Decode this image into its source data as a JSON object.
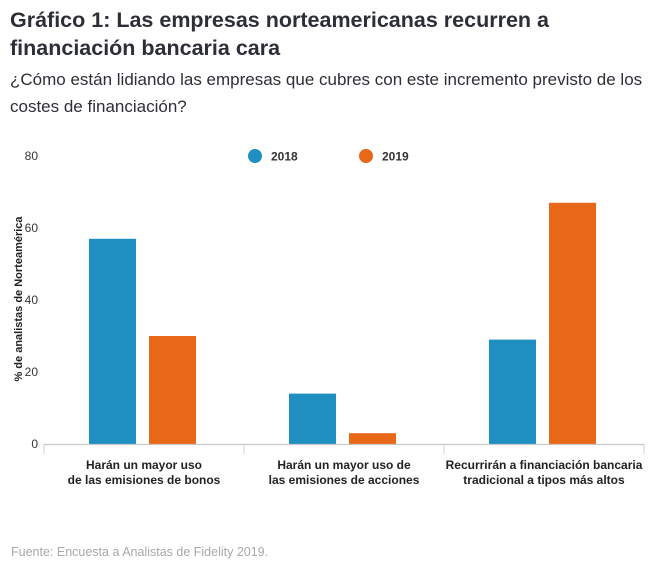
{
  "header": {
    "title": "Gráfico 1: Las empresas norteamericanas recurren a financiación bancaria cara",
    "subtitle": "¿Cómo están lidiando las empresas que cubres con este incremento previsto de los costes de financiación?"
  },
  "footer": {
    "source": "Fuente: Encuesta a Analistas de Fidelity 2019."
  },
  "chart_data": {
    "type": "bar",
    "title": "Gráfico 1: Las empresas norteamericanas recurren a financiación bancaria cara",
    "xlabel": "",
    "ylabel": "% de analistas de Norteamérica",
    "ylim": [
      0,
      80
    ],
    "yticks": [
      "0",
      "20",
      "40",
      "60",
      "80"
    ],
    "grid": false,
    "legend_position": "top-center",
    "categories": [
      [
        "Harán un mayor uso",
        "de las emisiones de bonos"
      ],
      [
        "Harán un mayor uso de",
        "las emisiones de acciones"
      ],
      [
        "Recurrirán a financiación bancaria",
        "tradicional a tipos más altos"
      ]
    ],
    "series": [
      {
        "name": "2018",
        "color": "#1f8fc1",
        "values": [
          57,
          14,
          29
        ]
      },
      {
        "name": "2019",
        "color": "#e8681a",
        "values": [
          30,
          3,
          67
        ]
      }
    ]
  }
}
